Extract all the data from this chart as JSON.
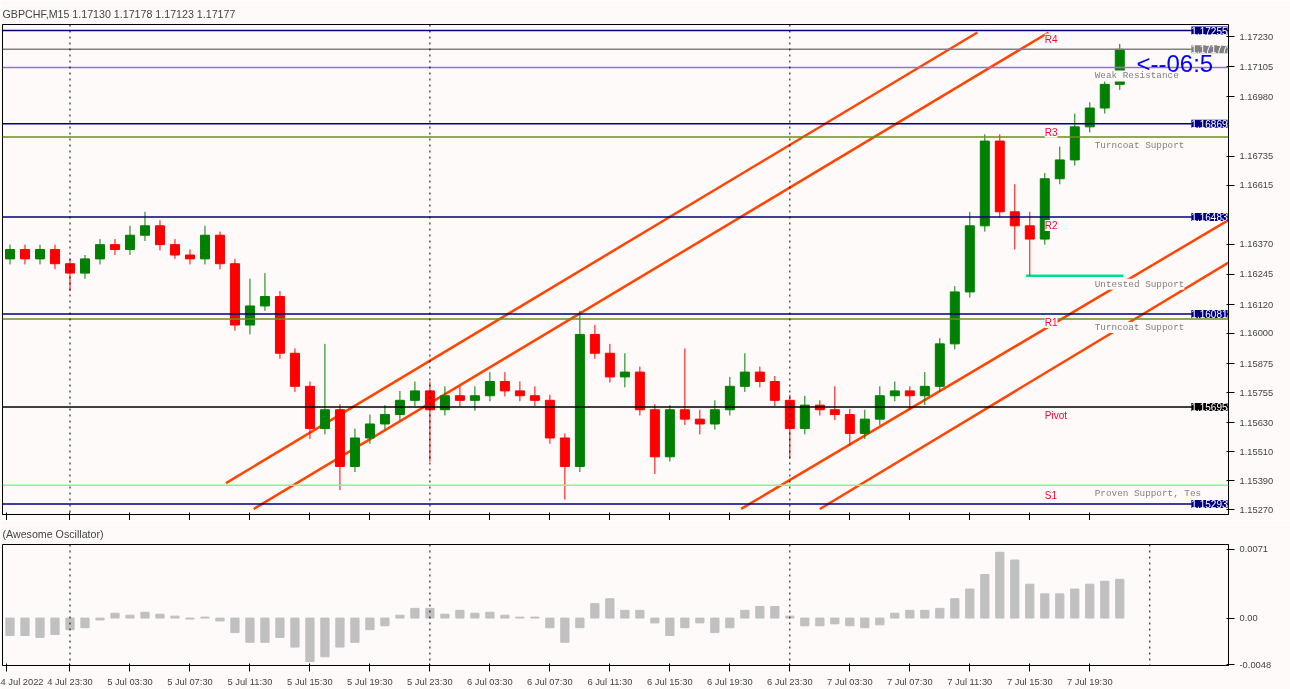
{
  "chart_data": [
    {
      "type": "candlestick",
      "title": "GBPCHF,M15  1.17130 1.17178 1.17123 1.17177",
      "x": [
        "2022-07-04T19:30",
        "2022-07-04T20:30",
        "2022-07-04T21:30",
        "2022-07-04T22:30",
        "2022-07-04T23:30",
        "2022-07-05T00:30",
        "2022-07-05T01:30",
        "2022-07-05T02:30",
        "2022-07-05T03:30",
        "2022-07-05T04:30",
        "2022-07-05T05:30",
        "2022-07-05T06:30",
        "2022-07-05T07:30",
        "2022-07-05T08:30",
        "2022-07-05T09:30",
        "2022-07-05T10:30",
        "2022-07-05T11:30",
        "2022-07-05T12:30",
        "2022-07-05T13:30",
        "2022-07-05T14:30",
        "2022-07-05T15:30",
        "2022-07-05T16:30",
        "2022-07-05T17:30",
        "2022-07-05T18:30",
        "2022-07-05T19:30",
        "2022-07-05T20:30",
        "2022-07-05T21:30",
        "2022-07-05T22:30",
        "2022-07-05T23:30",
        "2022-07-06T00:30",
        "2022-07-06T01:30",
        "2022-07-06T02:30",
        "2022-07-06T03:30",
        "2022-07-06T04:30",
        "2022-07-06T05:30",
        "2022-07-06T06:30",
        "2022-07-06T07:30",
        "2022-07-06T08:30",
        "2022-07-06T09:30",
        "2022-07-06T10:30",
        "2022-07-06T11:30",
        "2022-07-06T12:30",
        "2022-07-06T13:30",
        "2022-07-06T14:30",
        "2022-07-06T15:30",
        "2022-07-06T16:30",
        "2022-07-06T17:30",
        "2022-07-06T18:30",
        "2022-07-06T19:30",
        "2022-07-06T20:30",
        "2022-07-06T21:30",
        "2022-07-06T22:30",
        "2022-07-06T23:30",
        "2022-07-07T00:30",
        "2022-07-07T01:30",
        "2022-07-07T02:30",
        "2022-07-07T03:30",
        "2022-07-07T04:30",
        "2022-07-07T05:30",
        "2022-07-07T06:30",
        "2022-07-07T07:30",
        "2022-07-07T08:30",
        "2022-07-07T09:30",
        "2022-07-07T10:30",
        "2022-07-07T11:30",
        "2022-07-07T12:30",
        "2022-07-07T13:30",
        "2022-07-07T14:30",
        "2022-07-07T15:30",
        "2022-07-07T16:30",
        "2022-07-07T17:30",
        "2022-07-07T18:30",
        "2022-07-07T19:30",
        "2022-07-07T20:30",
        "2022-07-07T21:30"
      ],
      "ohlc": [
        [
          1.16309,
          1.16368,
          1.16286,
          1.16348
        ],
        [
          1.16348,
          1.16368,
          1.16286,
          1.16309
        ],
        [
          1.16309,
          1.16368,
          1.16286,
          1.16348
        ],
        [
          1.16348,
          1.16368,
          1.16266,
          1.16289
        ],
        [
          1.16289,
          1.16309,
          1.16176,
          1.1625
        ],
        [
          1.1625,
          1.16325,
          1.16227,
          1.16309
        ],
        [
          1.16309,
          1.16391,
          1.16286,
          1.16368
        ],
        [
          1.16368,
          1.16391,
          1.16325,
          1.16348
        ],
        [
          1.16348,
          1.16446,
          1.16325,
          1.16407
        ],
        [
          1.16407,
          1.16504,
          1.16383,
          1.16446
        ],
        [
          1.16446,
          1.16469,
          1.16344,
          1.16368
        ],
        [
          1.16368,
          1.16391,
          1.16309,
          1.16325
        ],
        [
          1.16325,
          1.16348,
          1.16286,
          1.16309
        ],
        [
          1.16309,
          1.16446,
          1.16286,
          1.16407
        ],
        [
          1.16407,
          1.16422,
          1.16266,
          1.16289
        ],
        [
          1.16289,
          1.16309,
          1.16012,
          1.16035
        ],
        [
          1.16035,
          1.16227,
          1.15996,
          1.16114
        ],
        [
          1.16114,
          1.1625,
          1.16094,
          1.16153
        ],
        [
          1.16153,
          1.16176,
          1.15895,
          1.15918
        ],
        [
          1.15918,
          1.15938,
          1.15758,
          1.15781
        ],
        [
          1.15781,
          1.15801,
          1.15563,
          1.15606
        ],
        [
          1.15606,
          1.15957,
          1.15582,
          1.15684
        ],
        [
          1.15684,
          1.15707,
          1.15351,
          1.15449
        ],
        [
          1.15449,
          1.15606,
          1.15426,
          1.15567
        ],
        [
          1.15567,
          1.15664,
          1.15543,
          1.15625
        ],
        [
          1.15625,
          1.15703,
          1.15602,
          1.15664
        ],
        [
          1.15664,
          1.15762,
          1.15641,
          1.15723
        ],
        [
          1.15723,
          1.15801,
          1.15699,
          1.15762
        ],
        [
          1.15762,
          1.15801,
          1.15469,
          1.15684
        ],
        [
          1.15684,
          1.15781,
          1.1566,
          1.15742
        ],
        [
          1.15742,
          1.15781,
          1.15699,
          1.15723
        ],
        [
          1.15723,
          1.15781,
          1.1568,
          1.15742
        ],
        [
          1.15742,
          1.1584,
          1.15719,
          1.15801
        ],
        [
          1.15801,
          1.1584,
          1.15739,
          1.15762
        ],
        [
          1.15762,
          1.15801,
          1.15719,
          1.15742
        ],
        [
          1.15742,
          1.15781,
          1.15699,
          1.15723
        ],
        [
          1.15723,
          1.15746,
          1.15543,
          1.15567
        ],
        [
          1.15567,
          1.15586,
          1.15312,
          1.15449
        ],
        [
          1.15449,
          1.16094,
          1.15426,
          1.15996
        ],
        [
          1.15996,
          1.16035,
          1.15895,
          1.15918
        ],
        [
          1.15918,
          1.15957,
          1.15797,
          1.1582
        ],
        [
          1.1582,
          1.15918,
          1.15777,
          1.1584
        ],
        [
          1.1584,
          1.15863,
          1.1566,
          1.15684
        ],
        [
          1.15684,
          1.15707,
          1.15418,
          1.15489
        ],
        [
          1.15489,
          1.15703,
          1.15469,
          1.15684
        ],
        [
          1.15684,
          1.15938,
          1.15621,
          1.15645
        ],
        [
          1.15645,
          1.15684,
          1.15582,
          1.15625
        ],
        [
          1.15625,
          1.15723,
          1.15602,
          1.15684
        ],
        [
          1.15684,
          1.1582,
          1.1566,
          1.15781
        ],
        [
          1.15781,
          1.15918,
          1.15758,
          1.1584
        ],
        [
          1.1584,
          1.15863,
          1.15777,
          1.15801
        ],
        [
          1.15801,
          1.15824,
          1.15699,
          1.15723
        ],
        [
          1.15723,
          1.15746,
          1.15481,
          1.15606
        ],
        [
          1.15606,
          1.15742,
          1.15582,
          1.15703
        ],
        [
          1.15703,
          1.15723,
          1.1566,
          1.15684
        ],
        [
          1.15684,
          1.15781,
          1.15641,
          1.15664
        ],
        [
          1.15664,
          1.15688,
          1.15535,
          1.15586
        ],
        [
          1.15586,
          1.15684,
          1.15563,
          1.15645
        ],
        [
          1.15645,
          1.15781,
          1.15621,
          1.15742
        ],
        [
          1.15742,
          1.15801,
          1.15719,
          1.15762
        ],
        [
          1.15762,
          1.15781,
          1.15684,
          1.15742
        ],
        [
          1.15742,
          1.1584,
          1.15703,
          1.15781
        ],
        [
          1.15781,
          1.15981,
          1.15758,
          1.15957
        ],
        [
          1.15957,
          1.16196,
          1.15934,
          1.16172
        ],
        [
          1.16172,
          1.16504,
          1.16149,
          1.16446
        ],
        [
          1.16446,
          1.16825,
          1.16422,
          1.16797
        ],
        [
          1.16797,
          1.16825,
          1.16481,
          1.16504
        ],
        [
          1.16504,
          1.16618,
          1.16348,
          1.16446
        ],
        [
          1.16446,
          1.16504,
          1.16239,
          1.16391
        ],
        [
          1.16391,
          1.16665,
          1.16368,
          1.16641
        ],
        [
          1.16641,
          1.16774,
          1.16618,
          1.16719
        ],
        [
          1.16719,
          1.16911,
          1.16696,
          1.16856
        ],
        [
          1.16856,
          1.16958,
          1.16833,
          1.16934
        ],
        [
          1.16934,
          1.17052,
          1.16911,
          1.17032
        ],
        [
          1.17032,
          1.172,
          1.17009,
          1.17177
        ]
      ],
      "colors": [
        "#008000",
        "#ff0000",
        "#008000",
        "#ff0000",
        "#ff0000",
        "#008000",
        "#008000",
        "#ff0000",
        "#008000",
        "#008000",
        "#ff0000",
        "#ff0000",
        "#ff0000",
        "#008000",
        "#ff0000",
        "#ff0000",
        "#008000",
        "#008000",
        "#ff0000",
        "#ff0000",
        "#ff0000",
        "#008000",
        "#ff0000",
        "#008000",
        "#008000",
        "#008000",
        "#008000",
        "#008000",
        "#ff0000",
        "#008000",
        "#ff0000",
        "#008000",
        "#008000",
        "#ff0000",
        "#ff0000",
        "#ff0000",
        "#ff0000",
        "#ff0000",
        "#008000",
        "#ff0000",
        "#ff0000",
        "#008000",
        "#ff0000",
        "#ff0000",
        "#008000",
        "#ff0000",
        "#ff0000",
        "#008000",
        "#008000",
        "#008000",
        "#ff0000",
        "#ff0000",
        "#ff0000",
        "#008000",
        "#ff0000",
        "#ff0000",
        "#ff0000",
        "#008000",
        "#008000",
        "#008000",
        "#ff0000",
        "#008000",
        "#008000",
        "#008000",
        "#008000",
        "#008000",
        "#ff0000",
        "#ff0000",
        "#ff0000",
        "#008000",
        "#008000",
        "#008000",
        "#008000",
        "#008000",
        "#008000"
      ],
      "series": [
        {
          "type": "line",
          "color": "#ff4500",
          "x": [
            "2022-07-05T09:54",
            "2022-07-07T12:00"
          ],
          "values": [
            1.1538,
            1.17247
          ]
        },
        {
          "type": "line",
          "color": "#ff4500",
          "x": [
            "2022-07-05T11:45",
            "2022-07-07T16:45"
          ],
          "values": [
            1.15273,
            1.17247
          ]
        },
        {
          "type": "line",
          "color": "#ff4500",
          "x": [
            "2022-07-06T20:15",
            "2022-07-08T04:45"
          ],
          "values": [
            1.15273,
            1.1647
          ]
        },
        {
          "type": "line",
          "color": "#ff4500",
          "x": [
            "2022-07-07T01:30",
            "2022-07-08T04:45"
          ],
          "values": [
            1.15273,
            1.16294
          ]
        },
        {
          "type": "line",
          "color": "#00e08a",
          "x": [
            "2022-07-07T15:15",
            "2022-07-07T21:45"
          ],
          "values": [
            1.16239,
            1.16239
          ]
        }
      ],
      "xlim": [
        "2022-07-04T19:00",
        "2022-07-08T04:45"
      ],
      "xticks": [
        {
          "value": "2022-07-04T19:15",
          "label": null
        },
        {
          "value": "2022-07-04T23:30",
          "label": null
        },
        {
          "value": "2022-07-05T03:30",
          "label": null
        },
        {
          "value": "2022-07-05T07:30",
          "label": null
        },
        {
          "value": "2022-07-05T11:30",
          "label": null
        },
        {
          "value": "2022-07-05T15:30",
          "label": null
        },
        {
          "value": "2022-07-05T19:30",
          "label": null
        },
        {
          "value": "2022-07-05T23:30",
          "label": null
        },
        {
          "value": "2022-07-06T03:30",
          "label": null
        },
        {
          "value": "2022-07-06T07:30",
          "label": null
        },
        {
          "value": "2022-07-06T11:30",
          "label": null
        },
        {
          "value": "2022-07-06T15:30",
          "label": null
        },
        {
          "value": "2022-07-06T19:30",
          "label": null
        },
        {
          "value": "2022-07-06T23:30",
          "label": null
        },
        {
          "value": "2022-07-07T03:30",
          "label": null
        },
        {
          "value": "2022-07-07T07:30",
          "label": null
        },
        {
          "value": "2022-07-07T11:30",
          "label": null
        },
        {
          "value": "2022-07-07T15:30",
          "label": null
        },
        {
          "value": "2022-07-07T19:30",
          "label": null
        }
      ],
      "ylim": [
        1.1525,
        1.1728
      ],
      "yticks": [
        {
          "value": 1.1723,
          "label": "1.17230"
        },
        {
          "value": 1.17105,
          "label": "1.17105"
        },
        {
          "value": 1.1698,
          "label": "1.16980"
        },
        {
          "value": 1.16735,
          "label": "1.16735"
        },
        {
          "value": 1.16615,
          "label": "1.16615"
        },
        {
          "value": 1.1637,
          "label": "1.16370"
        },
        {
          "value": 1.16245,
          "label": "1.16245"
        },
        {
          "value": 1.1612,
          "label": "1.16120"
        },
        {
          "value": 1.16,
          "label": "1.16000"
        },
        {
          "value": 1.15875,
          "label": "1.15875"
        },
        {
          "value": 1.15755,
          "label": "1.15755"
        },
        {
          "value": 1.1563,
          "label": "1.15630"
        },
        {
          "value": 1.1551,
          "label": "1.15510"
        },
        {
          "value": 1.1539,
          "label": "1.15390"
        },
        {
          "value": 1.1527,
          "label": "1.15270"
        }
      ],
      "tick_labels": "y",
      "ref_lines": [
        {
          "axis": "y",
          "value": 1.17255,
          "label": "1.17255",
          "color": "#000080"
        },
        {
          "axis": "y",
          "value": 1.17177,
          "label": "1.17177",
          "color": "#808080"
        },
        {
          "axis": "y",
          "value": 1.17102,
          "color": "#9370db"
        },
        {
          "axis": "y",
          "value": 1.16869,
          "label": "1.16869",
          "color": "#000080"
        },
        {
          "axis": "y",
          "value": 1.16814,
          "color": "#6b8e23"
        },
        {
          "axis": "y",
          "value": 1.16483,
          "label": "1.16483",
          "color": "#000080"
        },
        {
          "axis": "y",
          "value": 1.16081,
          "label": "1.16081",
          "color": "#000080"
        },
        {
          "axis": "y",
          "value": 1.1606,
          "color": "#6b8e23"
        },
        {
          "axis": "y",
          "value": 1.15695,
          "label": "1.15695",
          "color": "#000000"
        },
        {
          "axis": "y",
          "value": 1.15371,
          "color": "#90ee90"
        },
        {
          "axis": "y",
          "value": 1.15293,
          "label": "1.15293",
          "color": "#000080"
        },
        {
          "axis": "x",
          "value": "2022-07-04T23:30",
          "color": "#000000",
          "line_style": "dotted"
        },
        {
          "axis": "x",
          "value": "2022-07-05T23:30",
          "color": "#000000",
          "line_style": "dotted"
        },
        {
          "axis": "x",
          "value": "2022-07-06T23:30",
          "color": "#000000",
          "line_style": "dotted"
        }
      ],
      "annotations": [
        {
          "text": "R4",
          "x": "2022-07-07T16:30",
          "y": 1.17255
        },
        {
          "text": "R3",
          "x": "2022-07-07T16:30",
          "y": 1.16869
        },
        {
          "text": "R2",
          "x": "2022-07-07T16:30",
          "y": 1.16483
        },
        {
          "text": "R1",
          "x": "2022-07-07T16:30",
          "y": 1.16081
        },
        {
          "text": "Pivot",
          "x": "2022-07-07T16:30",
          "y": 1.15695
        },
        {
          "text": "S1",
          "x": "2022-07-07T16:30",
          "y": 1.15293
        },
        {
          "text": "Weak Resistance",
          "x": "2022-07-07T22:30",
          "y": 1.17102
        },
        {
          "text": "Turncoat Support",
          "x": "2022-07-07T22:30",
          "y": 1.16814
        },
        {
          "text": "Untested Support",
          "x": "2022-07-07T22:30",
          "y": 1.16239
        },
        {
          "text": "Turncoat Support",
          "x": "2022-07-07T22:30",
          "y": 1.1606
        },
        {
          "text": "Proven Support, Tes",
          "x": "2022-07-07T22:30",
          "y": 1.15371
        },
        "<--06:5"
      ]
    },
    {
      "type": "bar",
      "title": "(Awesome Oscillator)",
      "color": "#c0c0c0",
      "x": [
        "2022-07-04T19:30",
        "2022-07-04T20:30",
        "2022-07-04T21:30",
        "2022-07-04T22:30",
        "2022-07-04T23:30",
        "2022-07-05T00:30",
        "2022-07-05T01:30",
        "2022-07-05T02:30",
        "2022-07-05T03:30",
        "2022-07-05T04:30",
        "2022-07-05T05:30",
        "2022-07-05T06:30",
        "2022-07-05T07:30",
        "2022-07-05T08:30",
        "2022-07-05T09:30",
        "2022-07-05T10:30",
        "2022-07-05T11:30",
        "2022-07-05T12:30",
        "2022-07-05T13:30",
        "2022-07-05T14:30",
        "2022-07-05T15:30",
        "2022-07-05T16:30",
        "2022-07-05T17:30",
        "2022-07-05T18:30",
        "2022-07-05T19:30",
        "2022-07-05T20:30",
        "2022-07-05T21:30",
        "2022-07-05T22:30",
        "2022-07-05T23:30",
        "2022-07-06T00:30",
        "2022-07-06T01:30",
        "2022-07-06T02:30",
        "2022-07-06T03:30",
        "2022-07-06T04:30",
        "2022-07-06T05:30",
        "2022-07-06T06:30",
        "2022-07-06T07:30",
        "2022-07-06T08:30",
        "2022-07-06T09:30",
        "2022-07-06T10:30",
        "2022-07-06T11:30",
        "2022-07-06T12:30",
        "2022-07-06T13:30",
        "2022-07-06T14:30",
        "2022-07-06T15:30",
        "2022-07-06T16:30",
        "2022-07-06T17:30",
        "2022-07-06T18:30",
        "2022-07-06T19:30",
        "2022-07-06T20:30",
        "2022-07-06T21:30",
        "2022-07-06T22:30",
        "2022-07-06T23:30",
        "2022-07-07T00:30",
        "2022-07-07T01:30",
        "2022-07-07T02:30",
        "2022-07-07T03:30",
        "2022-07-07T04:30",
        "2022-07-07T05:30",
        "2022-07-07T06:30",
        "2022-07-07T07:30",
        "2022-07-07T08:30",
        "2022-07-07T09:30",
        "2022-07-07T10:30",
        "2022-07-07T11:30",
        "2022-07-07T12:30",
        "2022-07-07T13:30",
        "2022-07-07T14:30",
        "2022-07-07T15:30",
        "2022-07-07T16:30",
        "2022-07-07T17:30",
        "2022-07-07T18:30",
        "2022-07-07T19:30",
        "2022-07-07T20:30",
        "2022-07-07T21:30"
      ],
      "values": [
        -0.0018,
        -0.0018,
        -0.002,
        -0.0017,
        -0.0012,
        -0.001,
        -0.0002,
        0.0005,
        0.0003,
        0.0006,
        0.0004,
        0.0002,
        -0.0001,
        0.0001,
        -0.0003,
        -0.0015,
        -0.0025,
        -0.0025,
        -0.002,
        -0.003,
        -0.0045,
        -0.004,
        -0.003,
        -0.0025,
        -0.0012,
        -0.0008,
        0.0003,
        0.001,
        0.001,
        0.0004,
        0.0008,
        0.0005,
        0.0006,
        0.0003,
        0.0001,
        0.0001,
        -0.001,
        -0.0025,
        -0.001,
        0.0015,
        0.002,
        0.0008,
        0.0008,
        -0.0005,
        -0.0018,
        -0.001,
        -0.0005,
        -0.0015,
        -0.001,
        0.0008,
        0.0012,
        0.0012,
        0.0002,
        -0.0008,
        -0.0008,
        -0.0006,
        -0.0008,
        -0.001,
        -0.0007,
        0.0005,
        0.0008,
        0.0008,
        0.001,
        0.002,
        0.003,
        0.0045,
        0.0068,
        0.006,
        0.0035,
        0.0025,
        0.0025,
        0.003,
        0.0035,
        0.0038,
        0.004
      ],
      "xlim": [
        "2022-07-04T19:00",
        "2022-07-08T04:45"
      ],
      "xticks": [
        {
          "value": "2022-07-04T19:15",
          "label": "4 Jul 2022"
        },
        {
          "value": "2022-07-04T23:30",
          "label": "4 Jul 23:30"
        },
        {
          "value": "2022-07-05T03:30",
          "label": "5 Jul 03:30"
        },
        {
          "value": "2022-07-05T07:30",
          "label": "5 Jul 07:30"
        },
        {
          "value": "2022-07-05T11:30",
          "label": "5 Jul 11:30"
        },
        {
          "value": "2022-07-05T15:30",
          "label": "5 Jul 15:30"
        },
        {
          "value": "2022-07-05T19:30",
          "label": "5 Jul 19:30"
        },
        {
          "value": "2022-07-05T23:30",
          "label": "5 Jul 23:30"
        },
        {
          "value": "2022-07-06T03:30",
          "label": "6 Jul 03:30"
        },
        {
          "value": "2022-07-06T07:30",
          "label": "6 Jul 07:30"
        },
        {
          "value": "2022-07-06T11:30",
          "label": "6 Jul 11:30"
        },
        {
          "value": "2022-07-06T15:30",
          "label": "6 Jul 15:30"
        },
        {
          "value": "2022-07-06T19:30",
          "label": "6 Jul 19:30"
        },
        {
          "value": "2022-07-06T23:30",
          "label": "6 Jul 23:30"
        },
        {
          "value": "2022-07-07T03:30",
          "label": "7 Jul 03:30"
        },
        {
          "value": "2022-07-07T07:30",
          "label": "7 Jul 07:30"
        },
        {
          "value": "2022-07-07T11:30",
          "label": "7 Jul 11:30"
        },
        {
          "value": "2022-07-07T15:30",
          "label": "7 Jul 15:30"
        },
        {
          "value": "2022-07-07T19:30",
          "label": "7 Jul 19:30"
        }
      ],
      "ylim": [
        -0.0049,
        0.0076
      ],
      "yticks": [
        {
          "value": 0.0071,
          "label": "0.0071"
        },
        {
          "value": 0,
          "label": "0.00"
        },
        {
          "value": -0.0048,
          "label": "-0.0048"
        }
      ],
      "ref_lines": [
        {
          "axis": "x",
          "value": "2022-07-04T23:30",
          "color": "#000000",
          "line_style": "dotted"
        },
        {
          "axis": "x",
          "value": "2022-07-05T23:30",
          "color": "#000000",
          "line_style": "dotted"
        },
        {
          "axis": "x",
          "value": "2022-07-06T23:30",
          "color": "#000000",
          "line_style": "dotted"
        },
        {
          "axis": "x",
          "value": "2022-07-07T23:30",
          "color": "#000000",
          "line_style": "dotted"
        }
      ]
    }
  ]
}
